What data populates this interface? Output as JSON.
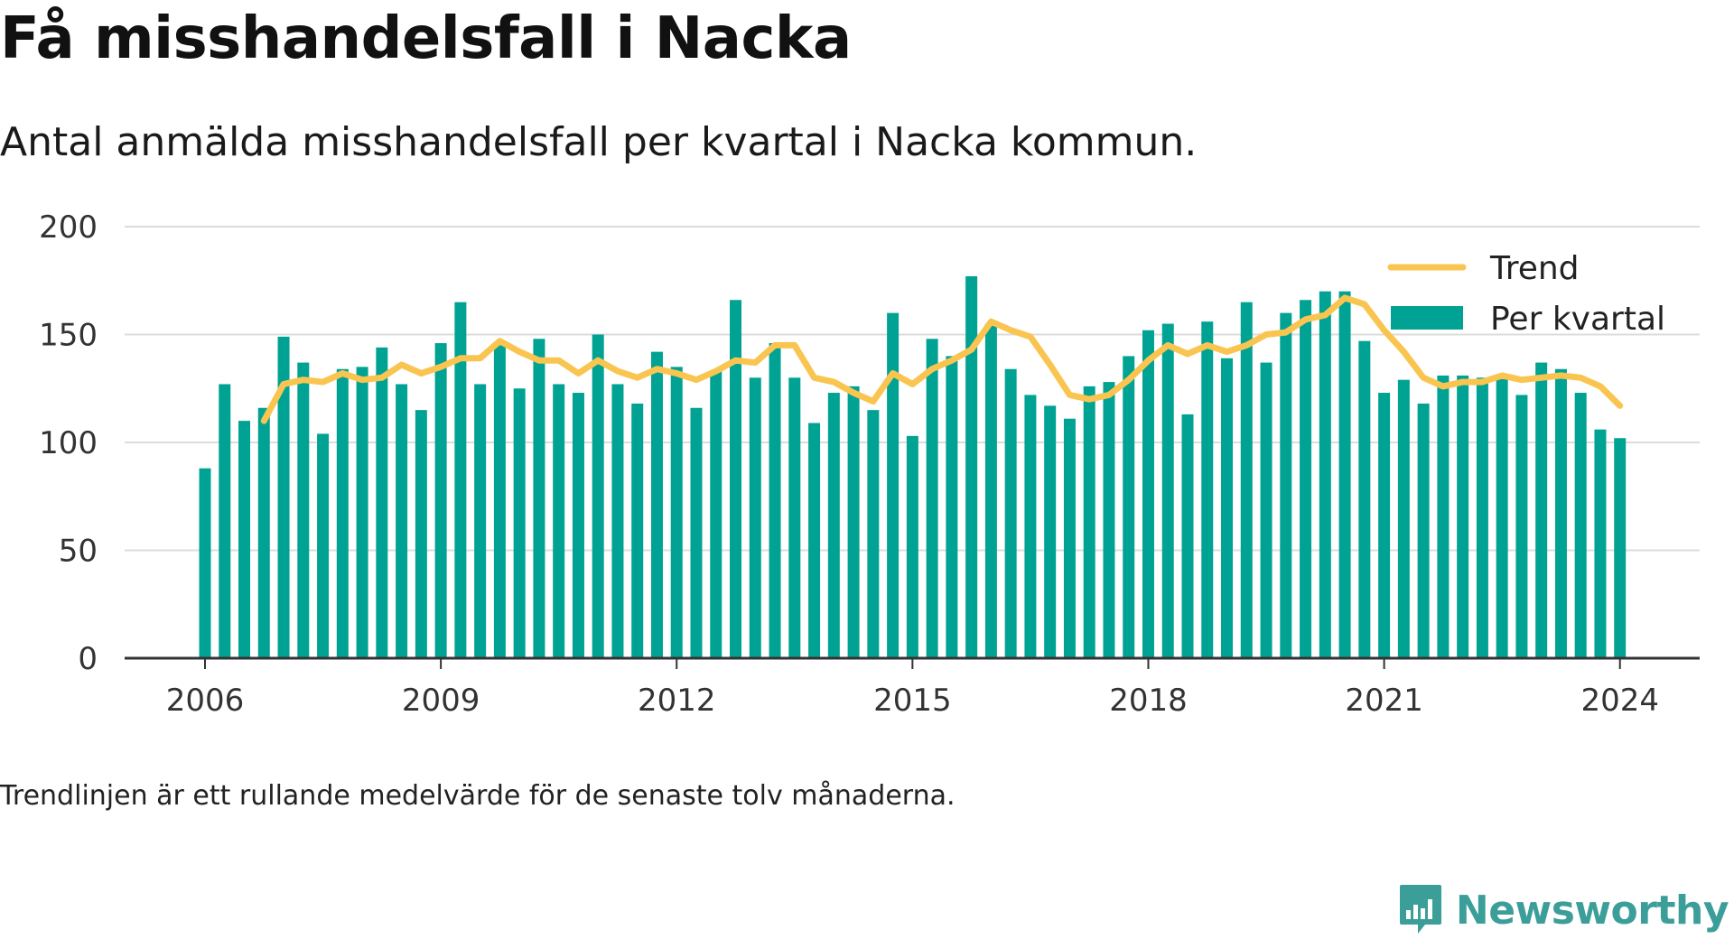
{
  "header": {
    "title": "Få misshandelsfall i Nacka",
    "subtitle": "Antal anmälda misshandelsfall per kvartal i Nacka kommun."
  },
  "footer": {
    "note": "Trendlinjen är ett rullande medelvärde för de senaste tolv månaderna.",
    "brand": "Newsworthy"
  },
  "colors": {
    "bar": "#00a393",
    "trend": "#f9c550",
    "grid": "#dcdcdc",
    "axis": "#333333",
    "brand": "#3c9e99"
  },
  "chart_data": {
    "type": "bar",
    "title": "",
    "xlabel": "",
    "ylabel": "",
    "ylim": [
      0,
      200
    ],
    "yticks": [
      0,
      50,
      100,
      150,
      200
    ],
    "xticks": [
      "2006",
      "2009",
      "2012",
      "2015",
      "2018",
      "2021",
      "2024"
    ],
    "grid": true,
    "legend_position": "top-right",
    "categories": [
      "2006 Q1",
      "2006 Q2",
      "2006 Q3",
      "2006 Q4",
      "2007 Q1",
      "2007 Q2",
      "2007 Q3",
      "2007 Q4",
      "2008 Q1",
      "2008 Q2",
      "2008 Q3",
      "2008 Q4",
      "2009 Q1",
      "2009 Q2",
      "2009 Q3",
      "2009 Q4",
      "2010 Q1",
      "2010 Q2",
      "2010 Q3",
      "2010 Q4",
      "2011 Q1",
      "2011 Q2",
      "2011 Q3",
      "2011 Q4",
      "2012 Q1",
      "2012 Q2",
      "2012 Q3",
      "2012 Q4",
      "2013 Q1",
      "2013 Q2",
      "2013 Q3",
      "2013 Q4",
      "2014 Q1",
      "2014 Q2",
      "2014 Q3",
      "2014 Q4",
      "2015 Q1",
      "2015 Q2",
      "2015 Q3",
      "2015 Q4",
      "2016 Q1",
      "2016 Q2",
      "2016 Q3",
      "2016 Q4",
      "2017 Q1",
      "2017 Q2",
      "2017 Q3",
      "2017 Q4",
      "2018 Q1",
      "2018 Q2",
      "2018 Q3",
      "2018 Q4",
      "2019 Q1",
      "2019 Q2",
      "2019 Q3",
      "2019 Q4",
      "2020 Q1",
      "2020 Q2",
      "2020 Q3",
      "2020 Q4",
      "2021 Q1",
      "2021 Q2",
      "2021 Q3",
      "2021 Q4",
      "2022 Q1",
      "2022 Q2",
      "2022 Q3",
      "2022 Q4",
      "2023 Q1",
      "2023 Q2",
      "2023 Q3",
      "2023 Q4",
      "2024 Q1"
    ],
    "series": [
      {
        "name": "Per kvartal",
        "kind": "bar",
        "values": [
          88,
          127,
          110,
          116,
          149,
          137,
          104,
          134,
          135,
          144,
          127,
          115,
          146,
          165,
          127,
          145,
          125,
          148,
          127,
          123,
          150,
          127,
          118,
          142,
          135,
          116,
          133,
          166,
          130,
          146,
          130,
          109,
          123,
          126,
          115,
          160,
          103,
          148,
          140,
          177,
          155,
          134,
          122,
          117,
          111,
          126,
          128,
          140,
          152,
          155,
          113,
          156,
          139,
          165,
          137,
          160,
          166,
          170,
          170,
          147,
          123,
          129,
          118,
          131,
          131,
          130,
          130,
          122,
          137,
          134,
          123,
          106,
          102
        ]
      },
      {
        "name": "Trend",
        "kind": "line",
        "values": [
          null,
          null,
          null,
          110,
          127,
          129,
          128,
          132,
          129,
          130,
          136,
          132,
          135,
          139,
          139,
          147,
          142,
          138,
          138,
          132,
          138,
          133,
          130,
          134,
          132,
          129,
          133,
          138,
          137,
          145,
          145,
          130,
          128,
          123,
          119,
          132,
          127,
          134,
          138,
          143,
          156,
          152,
          149,
          136,
          122,
          120,
          122,
          129,
          138,
          145,
          141,
          145,
          142,
          145,
          150,
          151,
          157,
          159,
          167,
          164,
          152,
          142,
          130,
          126,
          128,
          128,
          131,
          129,
          130,
          131,
          130,
          126,
          117
        ]
      }
    ]
  }
}
